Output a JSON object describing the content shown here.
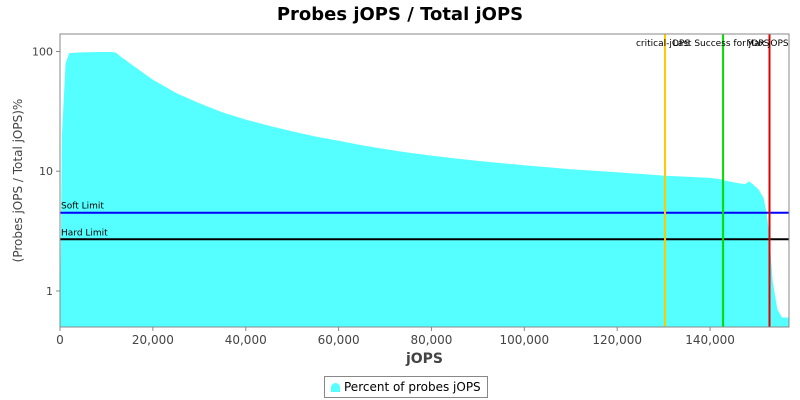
{
  "chart_data": {
    "type": "area",
    "title": "Probes jOPS / Total jOPS",
    "xlabel": "jOPS",
    "ylabel": "(Probes jOPS / Total jOPS)%",
    "y_scale": "log",
    "xlim": [
      0,
      157000
    ],
    "ylim": [
      0.5,
      140
    ],
    "x_ticks": [
      {
        "value": 0,
        "label": "0"
      },
      {
        "value": 20000,
        "label": "20,000"
      },
      {
        "value": 40000,
        "label": "40,000"
      },
      {
        "value": 60000,
        "label": "60,000"
      },
      {
        "value": 80000,
        "label": "80,000"
      },
      {
        "value": 100000,
        "label": "100,000"
      },
      {
        "value": 120000,
        "label": "120,000"
      },
      {
        "value": 140000,
        "label": "140,000"
      }
    ],
    "y_ticks": [
      {
        "value": 1,
        "label": "1"
      },
      {
        "value": 10,
        "label": "10"
      },
      {
        "value": 100,
        "label": "100"
      }
    ],
    "series": [
      {
        "name": "Percent of probes jOPS",
        "color": "#55FFFF",
        "x": [
          0,
          400,
          1200,
          2000,
          4000,
          6000,
          8000,
          10000,
          11000,
          12000,
          13000,
          15000,
          17500,
          20000,
          25000,
          30000,
          35000,
          40000,
          45000,
          50000,
          55000,
          60000,
          65000,
          70000,
          75000,
          80000,
          85000,
          90000,
          95000,
          100000,
          105000,
          110000,
          115000,
          120000,
          125000,
          130000,
          135000,
          140000,
          142000,
          143500,
          145000,
          146500,
          147500,
          148500,
          149500,
          150500,
          151500,
          152200,
          152800,
          153500,
          154500,
          155500,
          156300,
          157000
        ],
        "y": [
          0.5,
          20,
          80,
          97,
          98,
          98.5,
          99,
          99,
          99,
          98,
          91,
          80,
          68,
          58,
          45,
          37,
          31,
          27,
          24,
          21.5,
          19.5,
          18,
          16.5,
          15.3,
          14.3,
          13.5,
          12.8,
          12.2,
          11.7,
          11.2,
          10.8,
          10.4,
          10.1,
          9.8,
          9.5,
          9.2,
          9.0,
          8.8,
          8.6,
          8.3,
          8.1,
          7.9,
          7.8,
          8.2,
          7.6,
          7.0,
          6.0,
          4.5,
          2.8,
          1.2,
          0.7,
          0.6,
          0.6,
          0.6
        ]
      }
    ],
    "reference_lines": [
      {
        "orientation": "horizontal",
        "value": 4.5,
        "label": "Soft Limit",
        "color": "#0000FF"
      },
      {
        "orientation": "horizontal",
        "value": 2.7,
        "label": "Hard Limit",
        "color": "#000000"
      },
      {
        "orientation": "vertical",
        "value": 130300,
        "label": "critical-jOPS",
        "color": "#FFC800"
      },
      {
        "orientation": "vertical",
        "value": 142800,
        "label": "Last Success for jOPS",
        "color": "#00E000"
      },
      {
        "orientation": "vertical",
        "value": 152800,
        "label": "Max jOPS",
        "color": "#E00000"
      }
    ],
    "grid": false,
    "legend_position": "bottom"
  }
}
